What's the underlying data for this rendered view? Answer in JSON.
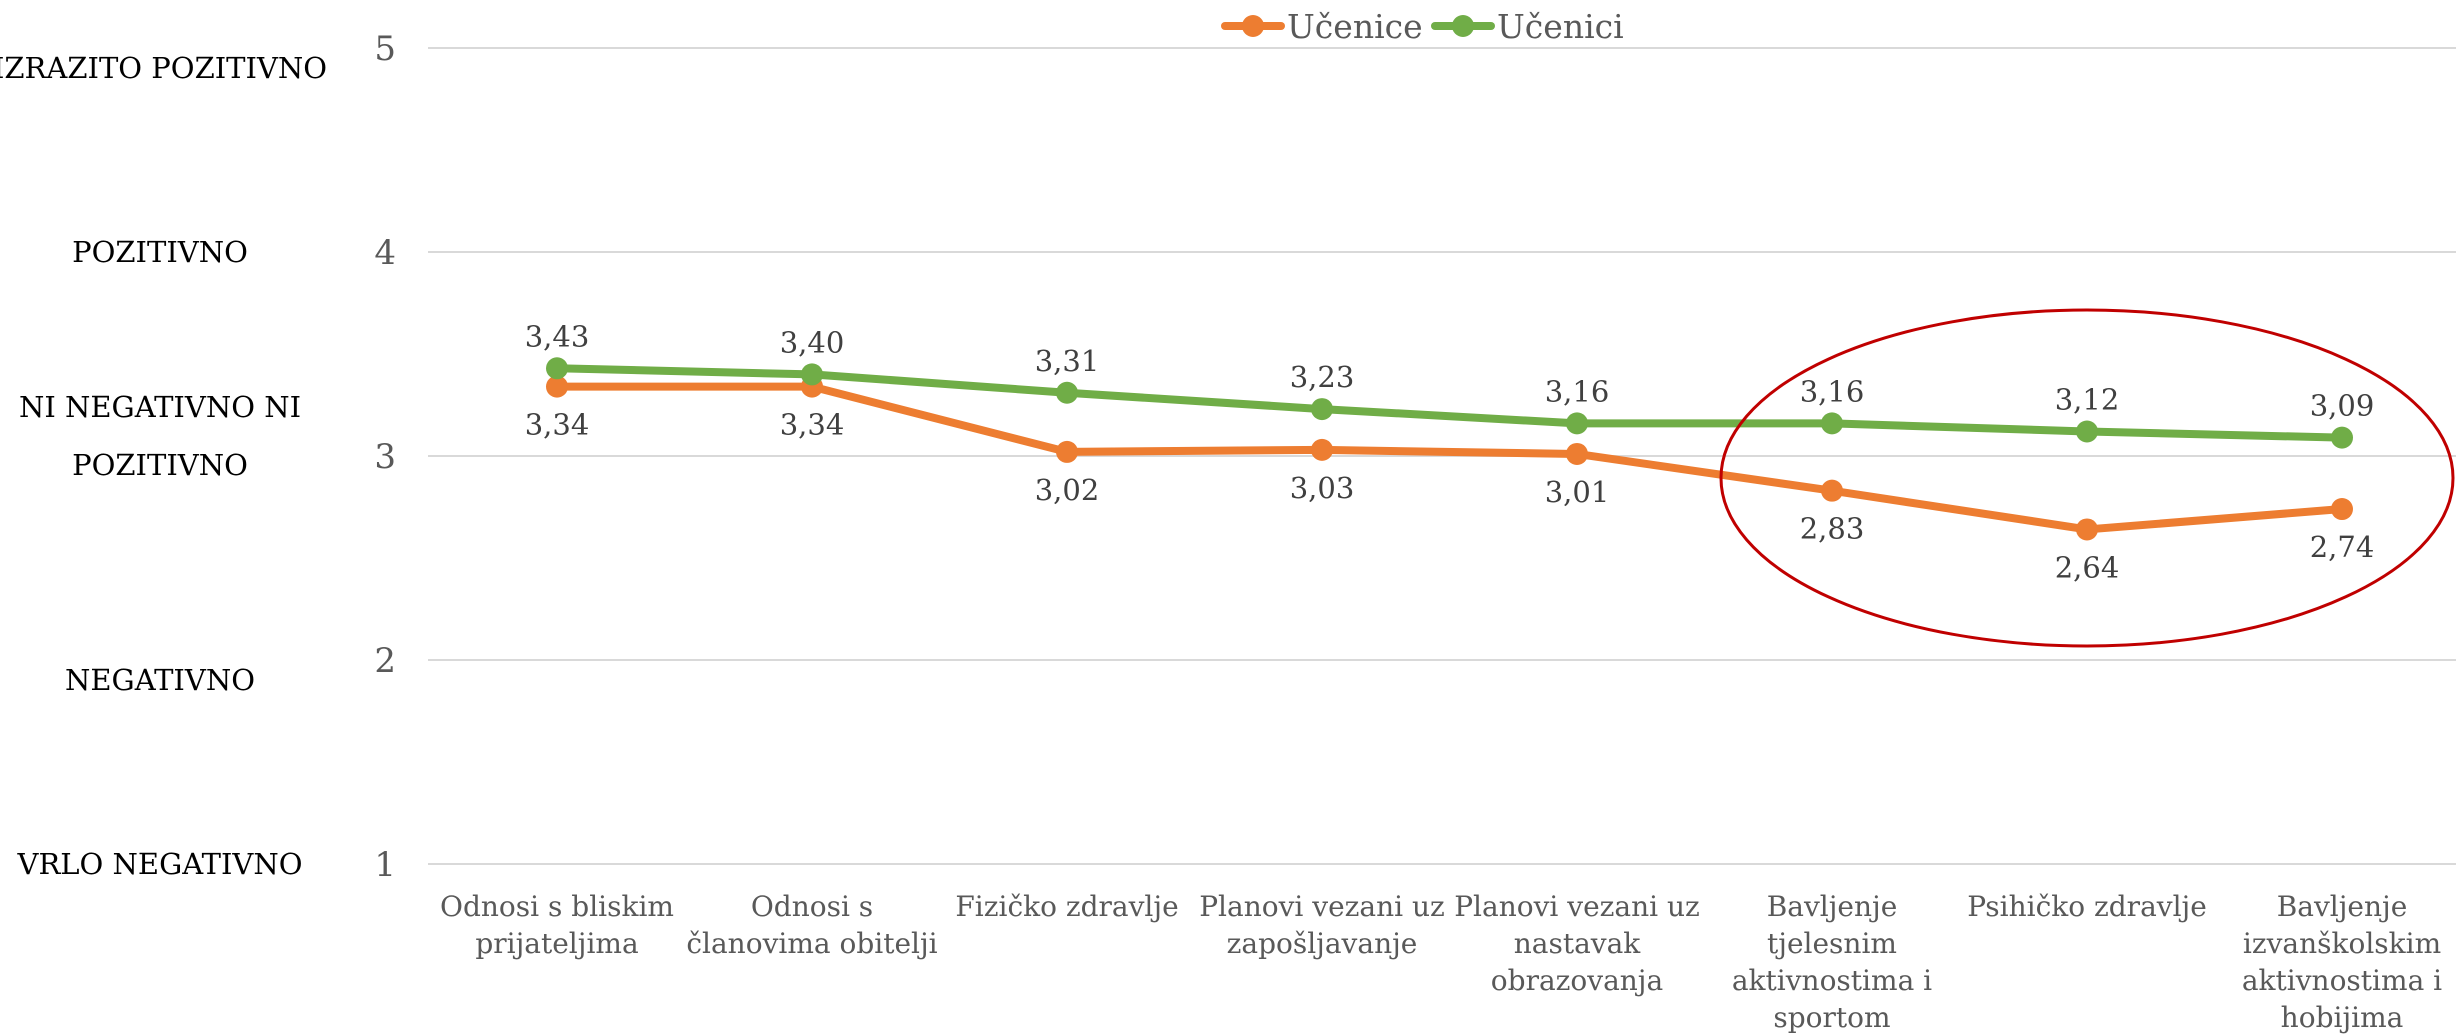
{
  "chart_data": {
    "type": "line",
    "categories": [
      [
        "Odnosi s bliskim",
        "prijateljima"
      ],
      [
        "Odnosi s",
        "članovima obitelji"
      ],
      [
        "Fizičko zdravlje"
      ],
      [
        "Planovi vezani uz",
        "zapošljavanje"
      ],
      [
        "Planovi vezani uz",
        "nastavak",
        "obrazovanja"
      ],
      [
        "Bavljenje",
        "tjelesnim",
        "aktivnostima i",
        "sportom"
      ],
      [
        "Psihičko zdravlje"
      ],
      [
        "Bavljenje",
        "izvanškolskim",
        "aktivnostima i",
        "hobijima"
      ]
    ],
    "series": [
      {
        "name": "Učenice",
        "color": "#ED7D31",
        "values": [
          3.34,
          3.34,
          3.02,
          3.03,
          3.01,
          2.83,
          2.64,
          2.74
        ],
        "labels": [
          "3,34",
          "3,34",
          "3,02",
          "3,03",
          "3,01",
          "2,83",
          "2,64",
          "2,74"
        ]
      },
      {
        "name": "Učenici",
        "color": "#70AD47",
        "values": [
          3.43,
          3.4,
          3.31,
          3.23,
          3.16,
          3.16,
          3.12,
          3.09
        ],
        "labels": [
          "3,43",
          "3,40",
          "3,31",
          "3,23",
          "3,16",
          "3,16",
          "3,12",
          "3,09"
        ]
      }
    ],
    "ylim": [
      1,
      5
    ],
    "yticks": [
      "1",
      "2",
      "3",
      "4",
      "5"
    ],
    "rating_labels": [
      {
        "value": 5,
        "lines": [
          "IZRAZITO POZITIVNO"
        ]
      },
      {
        "value": 4,
        "lines": [
          "POZITIVNO"
        ]
      },
      {
        "value": 3,
        "lines": [
          "NI NEGATIVNO NI",
          "POZITIVNO"
        ]
      },
      {
        "value": 2,
        "lines": [
          "NEGATIVNO"
        ]
      },
      {
        "value": 1,
        "lines": [
          "VRLO NEGATIVNO"
        ]
      }
    ],
    "grid": true,
    "legend_position": "top-center",
    "highlight": {
      "shape": "ellipse",
      "color": "#C00000",
      "categories_from": 5,
      "categories_to": 7
    }
  }
}
